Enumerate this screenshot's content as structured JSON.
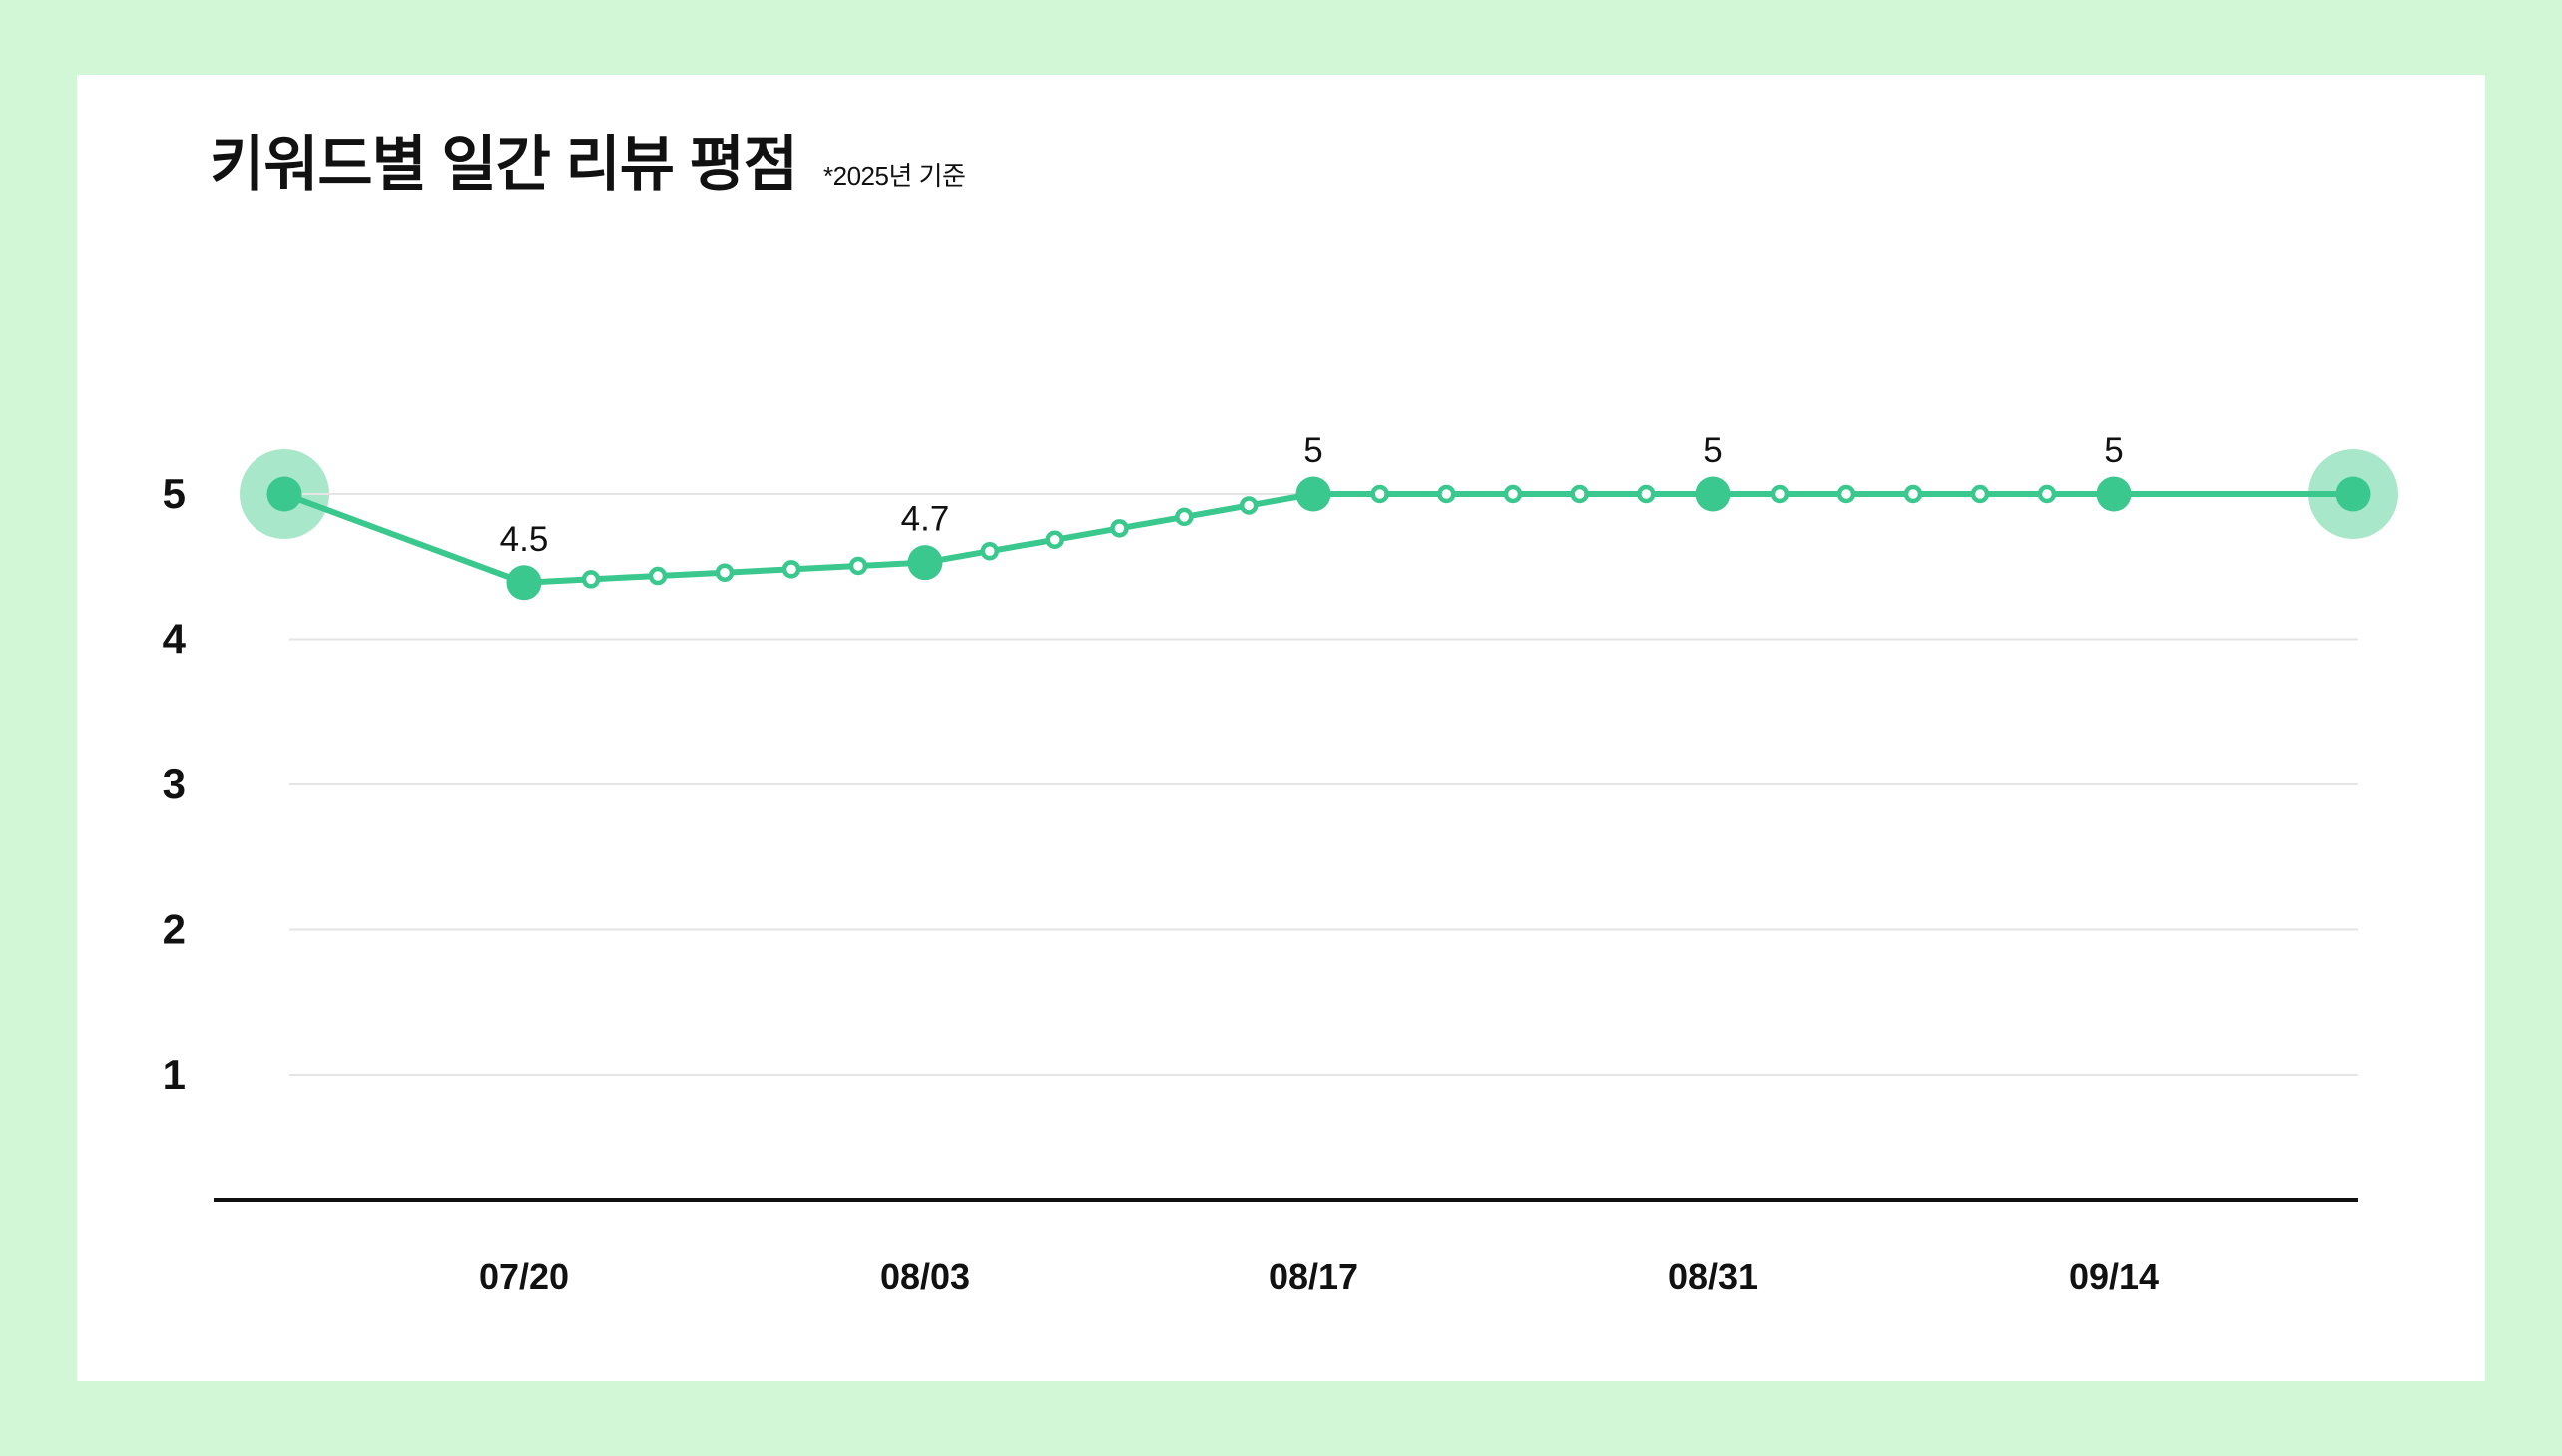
{
  "page": {
    "background": "#d2f7d7",
    "card_background": "#ffffff"
  },
  "header": {
    "title": "키워드별 일간 리뷰 평점",
    "note": "*2025년 기준"
  },
  "chart_data": {
    "type": "line",
    "title": "키워드별 일간 리뷰 평점",
    "note": "*2025년 기준",
    "x_tick_labels": [
      "07/20",
      "08/03",
      "08/17",
      "08/31",
      "09/14"
    ],
    "y_tick_labels": [
      "5",
      "4",
      "3",
      "2",
      "1"
    ],
    "ylim": [
      1,
      5
    ],
    "grid": "horizontal-only",
    "legend": "none",
    "points": [
      {
        "x_label": "",
        "value": 5,
        "marker": "halo",
        "data_label": ""
      },
      {
        "x_label": "07/20",
        "value": 4.5,
        "marker": "major",
        "data_label": "4.5"
      },
      {
        "x_label": "08/03",
        "value": 4.7,
        "marker": "major",
        "data_label": "4.7"
      },
      {
        "x_label": "08/17",
        "value": 5,
        "marker": "major",
        "data_label": "5"
      },
      {
        "x_label": "08/31",
        "value": 5,
        "marker": "major",
        "data_label": "5"
      },
      {
        "x_label": "09/14",
        "value": 5,
        "marker": "major",
        "data_label": "5"
      },
      {
        "x_label": "",
        "value": 5,
        "marker": "halo",
        "data_label": ""
      }
    ],
    "minor_markers_between_majors": 5,
    "colors": {
      "line": "#3ac88e",
      "halo": "#a9e7cb",
      "grid": "#e5e5e5",
      "axis": "#111111",
      "text": "#111111"
    }
  }
}
